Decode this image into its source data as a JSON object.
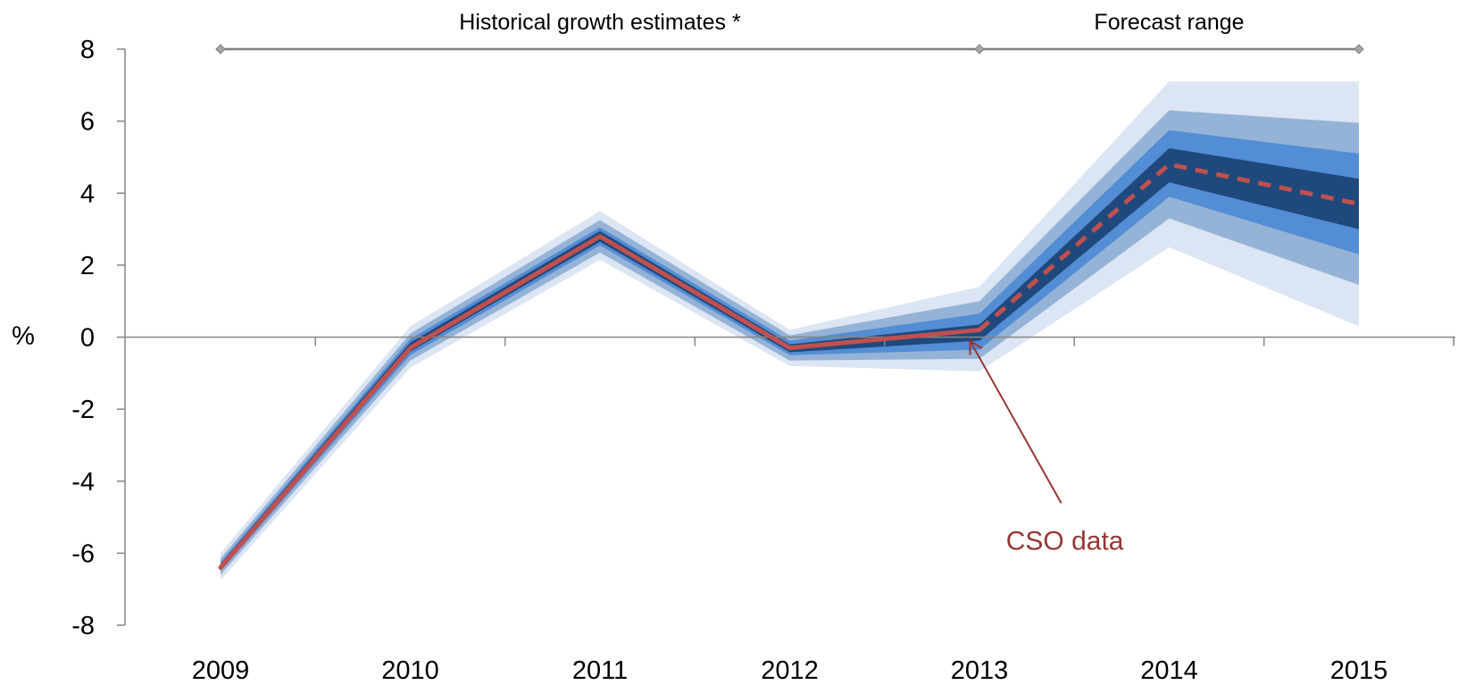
{
  "chart_data": {
    "type": "area",
    "title": "",
    "xlabel": "",
    "ylabel": "%",
    "ylim": [
      -8,
      8
    ],
    "ytick_step": 2,
    "yticks": [
      "8",
      "6",
      "4",
      "2",
      "0",
      "-2",
      "-4",
      "-6",
      "-8"
    ],
    "categories": [
      "2009",
      "2010",
      "2011",
      "2012",
      "2013",
      "2014",
      "2015"
    ],
    "x": [
      2009,
      2010,
      2011,
      2012,
      2013,
      2014,
      2015
    ],
    "grid": false,
    "fan_bands": [
      {
        "lower": [
          -6.75,
          -0.85,
          2.15,
          -0.8,
          -0.95,
          2.5,
          0.3
        ],
        "upper": [
          -6.0,
          0.3,
          3.5,
          0.2,
          1.4,
          7.1,
          7.1
        ],
        "color": "#dce5f3"
      },
      {
        "lower": [
          -6.6,
          -0.65,
          2.35,
          -0.65,
          -0.6,
          3.3,
          1.45
        ],
        "upper": [
          -6.15,
          0.1,
          3.25,
          0.05,
          1.0,
          6.3,
          5.95
        ],
        "color": "#95b3d7"
      },
      {
        "lower": [
          -6.5,
          -0.5,
          2.55,
          -0.5,
          -0.35,
          3.9,
          2.3
        ],
        "upper": [
          -6.25,
          -0.05,
          3.05,
          -0.1,
          0.65,
          5.75,
          5.1
        ],
        "color": "#538dd5"
      },
      {
        "lower": [
          -6.45,
          -0.4,
          2.65,
          -0.42,
          -0.1,
          4.3,
          3.0
        ],
        "upper": [
          -6.3,
          -0.15,
          2.95,
          -0.2,
          0.35,
          5.25,
          4.4
        ],
        "color": "#1f497d"
      }
    ],
    "series": [
      {
        "values": [
          -6.4,
          -0.3,
          2.8,
          -0.3,
          0.2,
          null,
          null
        ],
        "color": "#c0504d",
        "style": "solid"
      },
      {
        "values": [
          null,
          null,
          null,
          null,
          0.2,
          4.8,
          3.7
        ],
        "color": "#c0504d",
        "style": "dashed"
      }
    ],
    "period_markers": [
      {
        "label": "Historical growth estimates *",
        "from": 2009,
        "to": 2013
      },
      {
        "label": "Forecast range",
        "from": 2013,
        "to": 2015
      }
    ],
    "period_line_value": 8,
    "annotation": {
      "text": "CSO data",
      "x": 2013.45,
      "y": -5.9,
      "point_x": 2012.95,
      "point_y": 0.0,
      "color": "#953735"
    },
    "axis_color": "#868686",
    "marker_color": "#7f7f7f"
  }
}
